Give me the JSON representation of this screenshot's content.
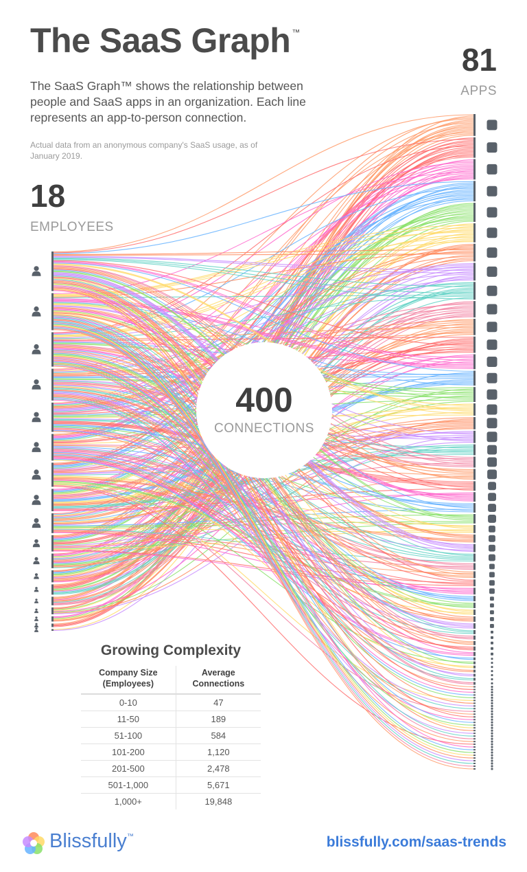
{
  "header": {
    "title": "The SaaS Graph",
    "title_mark": "™",
    "intro": "The SaaS Graph™ shows the relationship between people and SaaS apps in an organization. Each line represents an app-to-person connection.",
    "source": "Actual data from an anonymous company's SaaS usage, as of January 2019."
  },
  "employees": {
    "count": "18",
    "label": "EMPLOYEES",
    "n": 18
  },
  "apps": {
    "count": "81",
    "label": "APPS",
    "n": 81
  },
  "connections": {
    "count": "400",
    "label": "CONNECTIONS",
    "n": 400
  },
  "icons": {
    "employee": "person-icon",
    "app": "app-square-icon"
  },
  "colors": {
    "lines": [
      "#ff9966",
      "#ff6b6b",
      "#ff66cc",
      "#66b3ff",
      "#88e06a",
      "#ffd966",
      "#ff8a5c",
      "#c78bff",
      "#5fd1c4",
      "#f27fa0"
    ],
    "accent": "#3b7bd9",
    "marker": "#59616a"
  },
  "complexity_table": {
    "title": "Growing Complexity",
    "columns": [
      "Company Size\n(Employees)",
      "Average\nConnections"
    ],
    "rows": [
      [
        "0-10",
        "47"
      ],
      [
        "11-50",
        "189"
      ],
      [
        "51-100",
        "584"
      ],
      [
        "101-200",
        "1,120"
      ],
      [
        "201-500",
        "2,478"
      ],
      [
        "501-1,000",
        "5,671"
      ],
      [
        "1,000+",
        "19,848"
      ]
    ]
  },
  "footer": {
    "brand": "Blissfully",
    "brand_mark": "™",
    "link": "blissfully.com/saas-trends"
  }
}
